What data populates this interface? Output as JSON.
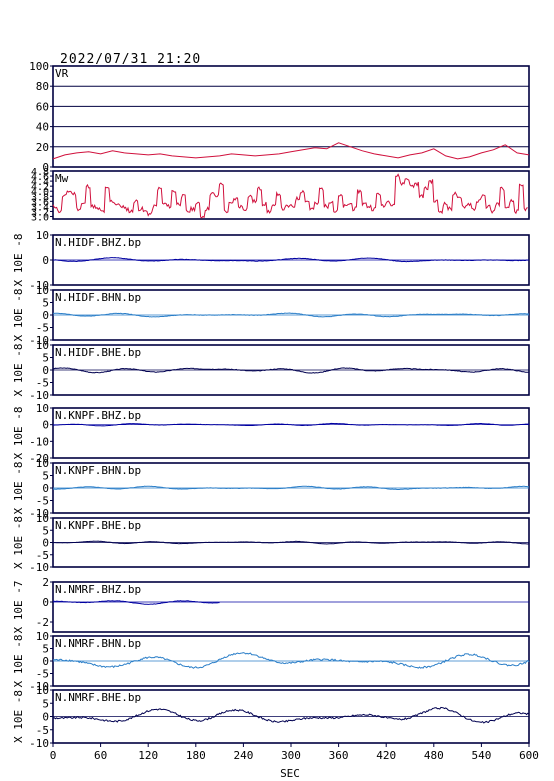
{
  "header": {
    "timestamp": "2022/07/31 21:20"
  },
  "chart_data": {
    "type": "line",
    "xlabel": "SEC",
    "x_range": [
      0,
      600
    ],
    "x_ticks": [
      0,
      60,
      120,
      180,
      240,
      300,
      360,
      420,
      480,
      540,
      600
    ],
    "panels": [
      {
        "label": "VR",
        "ylabel": "",
        "ylim": [
          0,
          100
        ],
        "y_ticks": [
          0,
          20,
          40,
          60,
          80,
          100
        ],
        "grid": true,
        "color": "#d0103c",
        "x": [
          0,
          15,
          30,
          45,
          60,
          75,
          90,
          105,
          120,
          135,
          150,
          165,
          180,
          195,
          210,
          225,
          240,
          255,
          270,
          285,
          300,
          315,
          330,
          345,
          360,
          375,
          390,
          405,
          420,
          435,
          450,
          465,
          480,
          495,
          510,
          525,
          540,
          555,
          570,
          585,
          600
        ],
        "y": [
          8,
          12,
          14,
          15,
          13,
          16,
          14,
          13,
          12,
          13,
          11,
          10,
          9,
          10,
          11,
          13,
          12,
          11,
          12,
          13,
          15,
          17,
          19,
          18,
          24,
          20,
          16,
          13,
          11,
          9,
          12,
          14,
          18,
          11,
          8,
          10,
          14,
          17,
          22,
          14,
          12
        ]
      },
      {
        "label": "Mw",
        "ylabel": "",
        "ylim": [
          2.9,
          4.8
        ],
        "y_ticks": [
          3.0,
          3.2,
          3.4,
          3.6,
          3.8,
          4.0,
          4.2,
          4.4,
          4.6,
          4.8
        ],
        "y_tick_labels": [
          "3.0",
          "3.2",
          "3.4",
          "3.6",
          "3.8",
          "4.0",
          "4.2",
          "4.4",
          "4.6",
          "4.8"
        ],
        "grid": false,
        "color": "#d0103c",
        "x": [
          0,
          6,
          12,
          18,
          24,
          30,
          36,
          42,
          48,
          54,
          60,
          66,
          72,
          78,
          84,
          90,
          96,
          102,
          108,
          114,
          120,
          126,
          132,
          138,
          144,
          150,
          156,
          162,
          168,
          174,
          180,
          186,
          192,
          198,
          204,
          210,
          216,
          222,
          228,
          234,
          240,
          246,
          252,
          258,
          264,
          270,
          276,
          282,
          288,
          294,
          300,
          306,
          312,
          318,
          324,
          330,
          336,
          342,
          348,
          354,
          360,
          366,
          372,
          378,
          384,
          390,
          396,
          402,
          408,
          414,
          420,
          426,
          432,
          438,
          444,
          450,
          456,
          462,
          468,
          474,
          480,
          486,
          492,
          498,
          504,
          510,
          516,
          522,
          528,
          534,
          540,
          546,
          552,
          558,
          564,
          570,
          576,
          582,
          588,
          594,
          600
        ],
        "y": [
          3.4,
          3.2,
          3.8,
          4.0,
          3.9,
          3.3,
          3.5,
          4.2,
          3.4,
          3.3,
          3.2,
          4.1,
          3.6,
          3.5,
          3.4,
          3.3,
          3.2,
          3.6,
          3.3,
          3.2,
          3.1,
          3.4,
          4.1,
          3.5,
          3.4,
          4.0,
          3.5,
          3.8,
          3.2,
          3.3,
          3.5,
          3.0,
          3.3,
          3.9,
          3.8,
          4.3,
          3.2,
          3.5,
          3.7,
          3.4,
          3.3,
          3.8,
          3.6,
          4.1,
          3.5,
          3.2,
          3.4,
          3.9,
          3.3,
          3.4,
          3.4,
          3.7,
          4.0,
          3.6,
          3.3,
          3.5,
          4.1,
          3.4,
          3.6,
          3.2,
          3.8,
          3.4,
          3.5,
          3.3,
          4.0,
          3.5,
          3.4,
          3.3,
          3.9,
          3.4,
          3.6,
          3.5,
          4.6,
          4.3,
          4.5,
          4.2,
          4.3,
          3.8,
          4.1,
          4.4,
          3.6,
          3.2,
          3.5,
          3.3,
          3.9,
          3.7,
          3.4,
          3.5,
          3.3,
          3.6,
          3.8,
          3.4,
          3.2,
          3.5,
          4.1,
          3.3,
          3.6,
          3.2,
          4.2,
          3.3,
          3.4
        ]
      },
      {
        "label": "N.HIDF.BHZ.bp",
        "ylabel": "X 10E -8",
        "ylim": [
          -10,
          10
        ],
        "y_ticks": [
          -10,
          0,
          10
        ],
        "color": "#0000a0",
        "amp": 0.6,
        "freq": 0.055,
        "seed": 1
      },
      {
        "label": "N.HIDF.BHN.bp",
        "ylabel": "X 10E -8",
        "ylim": [
          -10,
          10
        ],
        "y_ticks": [
          -10,
          -5,
          0,
          5,
          10
        ],
        "color": "#2a7ec8",
        "amp": 0.6,
        "freq": 0.06,
        "seed": 2
      },
      {
        "label": "N.HIDF.BHE.bp",
        "ylabel": "X 10E -8",
        "ylim": [
          -10,
          10
        ],
        "y_ticks": [
          -10,
          -5,
          0,
          5,
          10
        ],
        "color": "#000050",
        "amp": 0.8,
        "freq": 0.065,
        "seed": 3
      },
      {
        "label": "N.KNPF.BHZ.bp",
        "ylabel": "X 10E -8",
        "ylim": [
          -20,
          10
        ],
        "y_ticks": [
          -20,
          -10,
          0,
          10
        ],
        "color": "#0000a0",
        "amp": 0.5,
        "freq": 0.07,
        "seed": 4
      },
      {
        "label": "N.KNPF.BHN.bp",
        "ylabel": "X 10E -8",
        "ylim": [
          -10,
          10
        ],
        "y_ticks": [
          -10,
          -5,
          0,
          5,
          10
        ],
        "color": "#2a7ec8",
        "amp": 0.5,
        "freq": 0.065,
        "seed": 5
      },
      {
        "label": "N.KNPF.BHE.bp",
        "ylabel": "X 10E -8",
        "ylim": [
          -10,
          10
        ],
        "y_ticks": [
          -10,
          -5,
          0,
          5,
          10
        ],
        "color": "#000050",
        "amp": 0.4,
        "freq": 0.07,
        "seed": 6
      },
      {
        "label": "N.NMRF.BHZ.bp",
        "ylabel": "X 10E -7",
        "ylim": [
          -3,
          2
        ],
        "y_ticks": [
          -2,
          0,
          2
        ],
        "color": "#0000a0",
        "amp": 0.15,
        "freq": 0.06,
        "seed": 7,
        "x_end": 210
      },
      {
        "label": "N.NMRF.BHN.bp",
        "ylabel": "X 10E -8",
        "ylim": [
          -10,
          10
        ],
        "y_ticks": [
          -10,
          -5,
          0,
          5,
          10
        ],
        "color": "#2a7ec8",
        "amp": 2.4,
        "freq": 0.045,
        "seed": 8
      },
      {
        "label": "N.NMRF.BHE.bp",
        "ylabel": "X 10E -8",
        "ylim": [
          -10,
          10
        ],
        "y_ticks": [
          -10,
          -5,
          0,
          5,
          10
        ],
        "color": "#000050",
        "amp": 2.2,
        "freq": 0.05,
        "seed": 9
      }
    ]
  }
}
